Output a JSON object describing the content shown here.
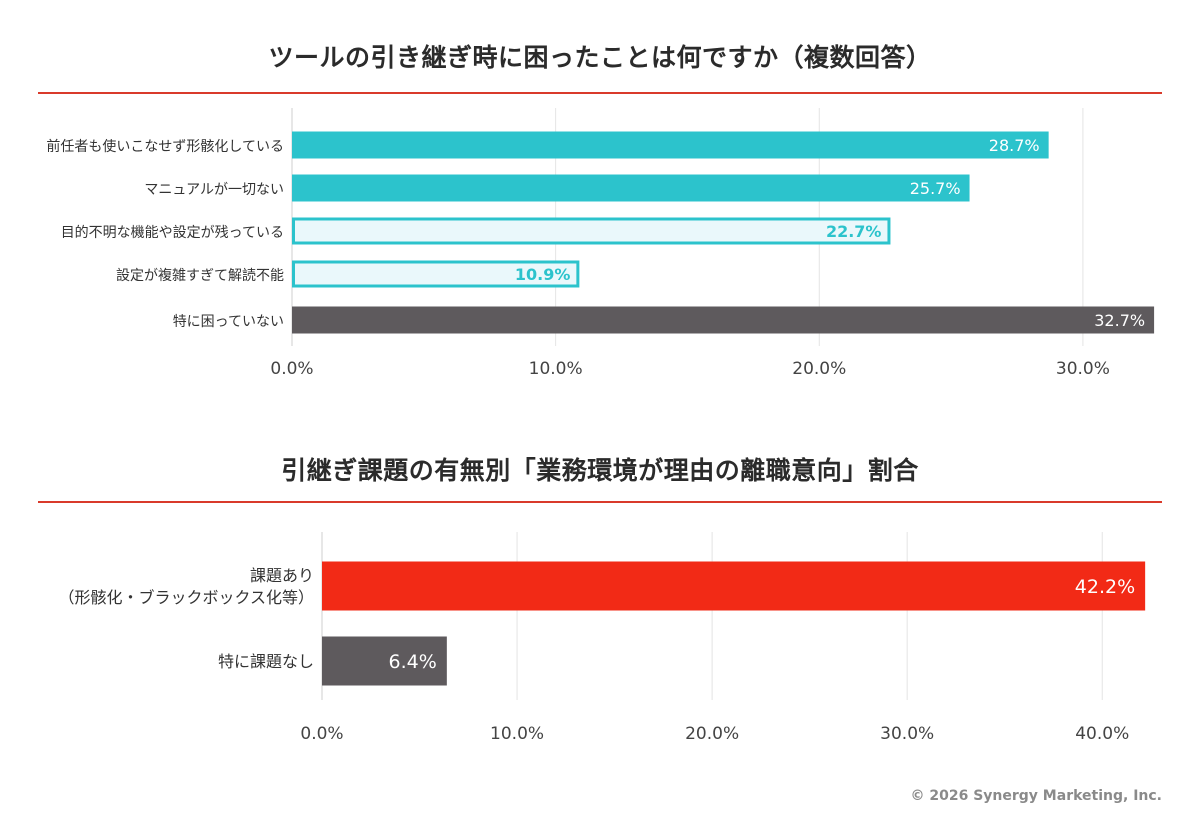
{
  "colors": {
    "teal": "#2cc3cc",
    "teal_light_fill": "#eaf8fb",
    "dark_gray": "#5e5a5d",
    "red": "#f22a16",
    "title_rule": "#d93a2b",
    "grid": "#e4e4e4"
  },
  "chart_data": [
    {
      "type": "bar",
      "orientation": "horizontal",
      "title": "ツールの引き継ぎ時に困ったことは何ですか（複数回答）",
      "categories": [
        "前任者も使いこなせず形骸化している",
        "マニュアルが一切ない",
        "目的不明な機能や設定が残っている",
        "設定が複雑すぎて解読不能",
        "特に困っていない"
      ],
      "values": [
        28.7,
        25.7,
        22.7,
        10.9,
        32.7
      ],
      "value_labels": [
        "28.7%",
        "25.7%",
        "22.7%",
        "10.9%",
        "32.7%"
      ],
      "bar_styles": [
        "solid-teal",
        "solid-teal",
        "outline-teal",
        "outline-teal",
        "solid-gray"
      ],
      "xlim": [
        0,
        33
      ],
      "xticks": [
        0,
        10,
        20,
        30
      ],
      "xtick_labels": [
        "0.0%",
        "10.0%",
        "20.0%",
        "30.0%"
      ],
      "grid": true
    },
    {
      "type": "bar",
      "orientation": "horizontal",
      "title": "引継ぎ課題の有無別「業務環境が理由の離職意向」割合",
      "categories": [
        [
          "課題あり",
          "（形骸化・ブラックボックス化等）"
        ],
        [
          "特に課題なし"
        ]
      ],
      "values": [
        42.2,
        6.4
      ],
      "value_labels": [
        "42.2%",
        "6.4%"
      ],
      "bar_styles": [
        "solid-red",
        "solid-gray"
      ],
      "xlim": [
        0,
        42.5
      ],
      "xticks": [
        0,
        10,
        20,
        30,
        40
      ],
      "xtick_labels": [
        "0.0%",
        "10.0%",
        "20.0%",
        "30.0%",
        "40.0%"
      ],
      "grid": true
    }
  ],
  "footer": {
    "copyright": "© 2026 Synergy Marketing, Inc."
  }
}
